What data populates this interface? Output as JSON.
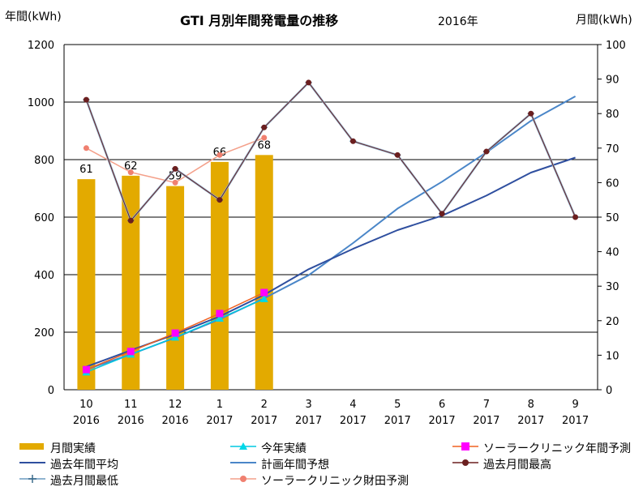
{
  "chart_data": {
    "type": "bar",
    "title": "GTI 月別年間発電量の推移",
    "subtitle": "2016年",
    "ylabel_left": "年間(kWh)",
    "ylabel_right": "月間(kWh)",
    "ylim_left": [
      0,
      1200
    ],
    "ylim_right": [
      0,
      100
    ],
    "yticks_left": [
      "0",
      "200",
      "400",
      "600",
      "800",
      "1000",
      "1200"
    ],
    "yticks_right": [
      "0",
      "10",
      "20",
      "30",
      "40",
      "50",
      "60",
      "70",
      "80",
      "90",
      "100"
    ],
    "categories": [
      {
        "month": "10",
        "year": "2016"
      },
      {
        "month": "11",
        "year": "2016"
      },
      {
        "month": "12",
        "year": "2016"
      },
      {
        "month": "1",
        "year": "2017"
      },
      {
        "month": "2",
        "year": "2017"
      },
      {
        "month": "3",
        "year": "2017"
      },
      {
        "month": "4",
        "year": "2017"
      },
      {
        "month": "5",
        "year": "2017"
      },
      {
        "month": "6",
        "year": "2017"
      },
      {
        "month": "7",
        "year": "2017"
      },
      {
        "month": "8",
        "year": "2017"
      },
      {
        "month": "9",
        "year": "2017"
      }
    ],
    "grid": true,
    "legend_position": "bottom",
    "series": [
      {
        "name": "月間実績",
        "type": "bar",
        "axis": "right",
        "color": "#E3AA00",
        "values": [
          61,
          62,
          59,
          66,
          68,
          null,
          null,
          null,
          null,
          null,
          null,
          null
        ],
        "labels": [
          "61",
          "62",
          "59",
          "66",
          "68"
        ]
      },
      {
        "name": "今年実績",
        "type": "line",
        "axis": "left",
        "color": "#00C8E0",
        "marker": "triangle",
        "values": [
          61,
          123,
          182,
          248,
          316,
          null,
          null,
          null,
          null,
          null,
          null,
          null
        ]
      },
      {
        "name": "ソーラークリニック年間予測",
        "type": "line",
        "axis": "left",
        "color": "#F06020",
        "marker": "square",
        "marker_color": "#FF00FF",
        "values": [
          70,
          133,
          197,
          265,
          338,
          null,
          null,
          null,
          null,
          null,
          null,
          null
        ]
      },
      {
        "name": "過去年間平均",
        "type": "line",
        "axis": "left",
        "color": "#2F4F9F",
        "marker": "none",
        "values": [
          80,
          137,
          193,
          255,
          330,
          419,
          490,
          555,
          605,
          675,
          755,
          807
        ]
      },
      {
        "name": "計画年間予想",
        "type": "line",
        "axis": "left",
        "color": "#4A86C8",
        "marker": "none",
        "values": [
          70,
          123,
          181,
          245,
          318,
          398,
          510,
          630,
          723,
          825,
          935,
          1020
        ]
      },
      {
        "name": "過去月間最高",
        "type": "line",
        "axis": "right",
        "color": "#6B1F1F",
        "marker": "circle",
        "values": [
          84,
          49,
          64,
          55,
          76,
          89,
          72,
          68,
          51,
          69,
          80,
          50
        ]
      },
      {
        "name": "過去月間最低",
        "type": "line",
        "axis": "right",
        "color": "#8FB4D0",
        "marker": "plus",
        "values": [
          84,
          49,
          64,
          55,
          76,
          89,
          72,
          68,
          51,
          69,
          80,
          50
        ]
      },
      {
        "name": "ソーラークリニック財田予測",
        "type": "line",
        "axis": "right",
        "color": "#F4A08A",
        "marker": "circle",
        "marker_color": "#F08070",
        "values": [
          70,
          63,
          60,
          68,
          73,
          null,
          null,
          null,
          null,
          null,
          null,
          null
        ]
      }
    ]
  }
}
